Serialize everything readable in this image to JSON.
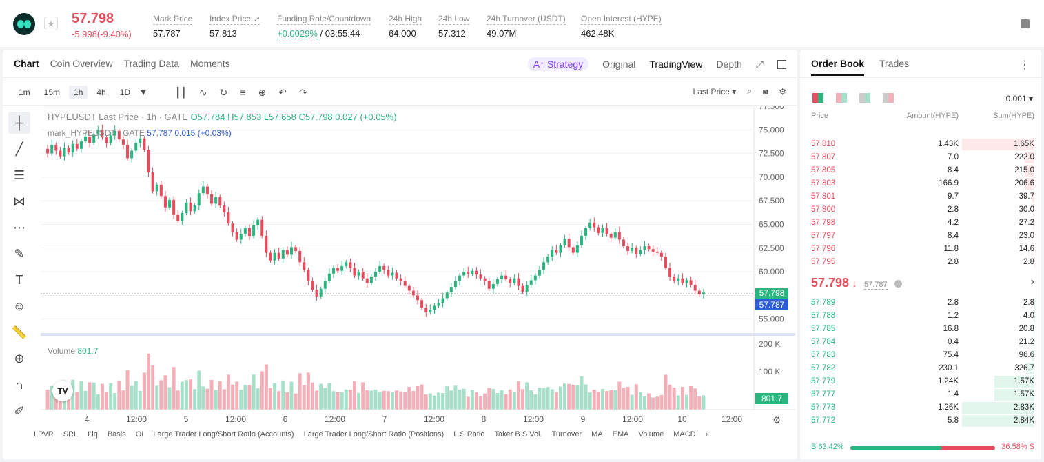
{
  "header": {
    "price": "57.798",
    "change": "-5.998(-9.40%)",
    "stats": [
      {
        "label": "Mark Price",
        "value": "57.787"
      },
      {
        "label": "Index Price ↗",
        "value": "57.813"
      },
      {
        "label": "Funding Rate/Countdown",
        "value_green": "+0.0029%",
        "value_rest": " / 03:55:44"
      },
      {
        "label": "24h High",
        "value": "64.000"
      },
      {
        "label": "24h Low",
        "value": "57.312"
      },
      {
        "label": "24h Turnover (USDT)",
        "value": "49.07M"
      },
      {
        "label": "Open Interest (HYPE)",
        "value": "462.48K"
      }
    ]
  },
  "chart_tabs": [
    "Chart",
    "Coin Overview",
    "Trading Data",
    "Moments"
  ],
  "view_tabs": {
    "strategy": "Strategy",
    "original": "Original",
    "tradingview": "TradingView",
    "depth": "Depth"
  },
  "intervals": [
    "1m",
    "15m",
    "1h",
    "4h",
    "1D"
  ],
  "price_type": "Last Price",
  "ohlc": {
    "symbol": "HYPEUSDT Last Price · 1h · GATE",
    "o": "O57.784",
    "h": "H57.853",
    "l": "L57.658",
    "c": "C57.798",
    "chg": "0.027 (+0.05%)"
  },
  "mark_line": {
    "label": "mark_HYPEUSDT · GATE",
    "value": "57.787",
    "chg": "0.015 (+0.03%)"
  },
  "volume": {
    "label": "Volume",
    "value": "801.7"
  },
  "price_axis": [
    "77.500",
    "75.000",
    "72.500",
    "70.000",
    "67.500",
    "65.000",
    "62.500",
    "60.000",
    "57.500",
    "55.000"
  ],
  "volume_axis": [
    "200 K",
    "100 K"
  ],
  "last_price_tag": "57.798",
  "mark_price_tag": "57.787",
  "volume_tag": "801.7",
  "time_axis": [
    "4",
    "12:00",
    "5",
    "12:00",
    "6",
    "12:00",
    "7",
    "12:00",
    "8",
    "12:00",
    "9",
    "12:00",
    "10",
    "12:00"
  ],
  "indicators": [
    "LPVR",
    "SRL",
    "Liq",
    "Basis",
    "OI",
    "Large Trader Long/Short Ratio (Accounts)",
    "Large Trader Long/Short Ratio (Positions)",
    "L.S Ratio",
    "Taker B.S Vol.",
    "Turnover",
    "MA",
    "EMA",
    "Volume",
    "MACD"
  ],
  "tv_logo": "TV",
  "orderbook": {
    "tabs": [
      "Order Book",
      "Trades"
    ],
    "precision": "0.001",
    "headers": {
      "price": "Price",
      "amount": "Amount(HYPE)",
      "sum": "Sum(HYPE)"
    },
    "asks": [
      {
        "price": "57.810",
        "amount": "1.43K",
        "sum": "1.65K",
        "depth": 1.0
      },
      {
        "price": "57.807",
        "amount": "7.0",
        "sum": "222.0",
        "depth": 0.135
      },
      {
        "price": "57.805",
        "amount": "8.4",
        "sum": "215.0",
        "depth": 0.13
      },
      {
        "price": "57.803",
        "amount": "166.9",
        "sum": "206.6",
        "depth": 0.125
      },
      {
        "price": "57.801",
        "amount": "9.7",
        "sum": "39.7",
        "depth": 0.024
      },
      {
        "price": "57.800",
        "amount": "2.8",
        "sum": "30.0",
        "depth": 0.018
      },
      {
        "price": "57.798",
        "amount": "4.2",
        "sum": "27.2",
        "depth": 0.016
      },
      {
        "price": "57.797",
        "amount": "8.4",
        "sum": "23.0",
        "depth": 0.014
      },
      {
        "price": "57.796",
        "amount": "11.8",
        "sum": "14.6",
        "depth": 0.009
      },
      {
        "price": "57.795",
        "amount": "2.8",
        "sum": "2.8",
        "depth": 0.002
      }
    ],
    "mid_price": "57.798",
    "mid_mark": "57.787",
    "bids": [
      {
        "price": "57.789",
        "amount": "2.8",
        "sum": "2.8",
        "depth": 0.001
      },
      {
        "price": "57.788",
        "amount": "1.2",
        "sum": "4.0",
        "depth": 0.0014
      },
      {
        "price": "57.785",
        "amount": "16.8",
        "sum": "20.8",
        "depth": 0.007
      },
      {
        "price": "57.784",
        "amount": "0.4",
        "sum": "21.2",
        "depth": 0.0075
      },
      {
        "price": "57.783",
        "amount": "75.4",
        "sum": "96.6",
        "depth": 0.034
      },
      {
        "price": "57.782",
        "amount": "230.1",
        "sum": "326.7",
        "depth": 0.115
      },
      {
        "price": "57.779",
        "amount": "1.24K",
        "sum": "1.57K",
        "depth": 0.555
      },
      {
        "price": "57.777",
        "amount": "1.4",
        "sum": "1.57K",
        "depth": 0.556
      },
      {
        "price": "57.773",
        "amount": "1.26K",
        "sum": "2.83K",
        "depth": 0.997
      },
      {
        "price": "57.772",
        "amount": "5.8",
        "sum": "2.84K",
        "depth": 1.0
      }
    ],
    "buy_ratio": "B 63.42%",
    "sell_ratio": "36.58% S",
    "buy_fraction": 0.6342
  },
  "colors": {
    "up": "#2bb680",
    "down": "#e54c5e",
    "mark": "#2e5bd8"
  },
  "candles": [
    73.0,
    72.5,
    73.4,
    72.8,
    72.2,
    73.1,
    72.6,
    73.5,
    73.0,
    73.8,
    74.3,
    73.6,
    74.5,
    75.0,
    74.2,
    73.6,
    74.4,
    74.9,
    74.0,
    73.4,
    72.0,
    72.8,
    73.6,
    74.1,
    72.9,
    70.5,
    68.5,
    69.2,
    68.0,
    66.8,
    67.6,
    66.0,
    65.4,
    66.2,
    67.3,
    66.4,
    67.0,
    68.3,
    69.0,
    68.2,
    67.2,
    67.9,
    67.0,
    66.3,
    65.1,
    64.2,
    63.4,
    64.0,
    64.6,
    63.8,
    64.9,
    65.5,
    63.8,
    62.0,
    61.2,
    62.0,
    61.4,
    62.3,
    61.8,
    62.6,
    62.2,
    61.0,
    60.2,
    59.0,
    58.1,
    57.4,
    58.2,
    59.0,
    59.8,
    60.4,
    60.1,
    60.6,
    61.0,
    60.4,
    59.6,
    60.0,
    59.3,
    58.8,
    59.5,
    60.0,
    60.6,
    60.2,
    59.6,
    59.9,
    59.3,
    59.0,
    58.5,
    58.0,
    57.5,
    57.0,
    56.2,
    55.7,
    56.0,
    56.4,
    56.7,
    57.2,
    57.8,
    58.4,
    59.0,
    59.6,
    60.0,
    59.8,
    60.1,
    59.7,
    59.3,
    59.0,
    58.2,
    58.7,
    59.2,
    59.6,
    59.2,
    58.8,
    59.3,
    58.5,
    57.9,
    58.6,
    59.1,
    59.6,
    60.2,
    61.0,
    61.6,
    62.3,
    62.0,
    62.8,
    63.5,
    62.6,
    62.0,
    62.8,
    63.8,
    64.6,
    65.2,
    64.7,
    64.1,
    64.6,
    64.0,
    63.6,
    64.2,
    63.4,
    62.7,
    62.2,
    62.5,
    61.9,
    62.3,
    62.7,
    62.4,
    62.1,
    62.0,
    61.6,
    60.4,
    59.5,
    59.0,
    59.3,
    58.8,
    59.1,
    58.6,
    58.0,
    57.6,
    57.8
  ]
}
